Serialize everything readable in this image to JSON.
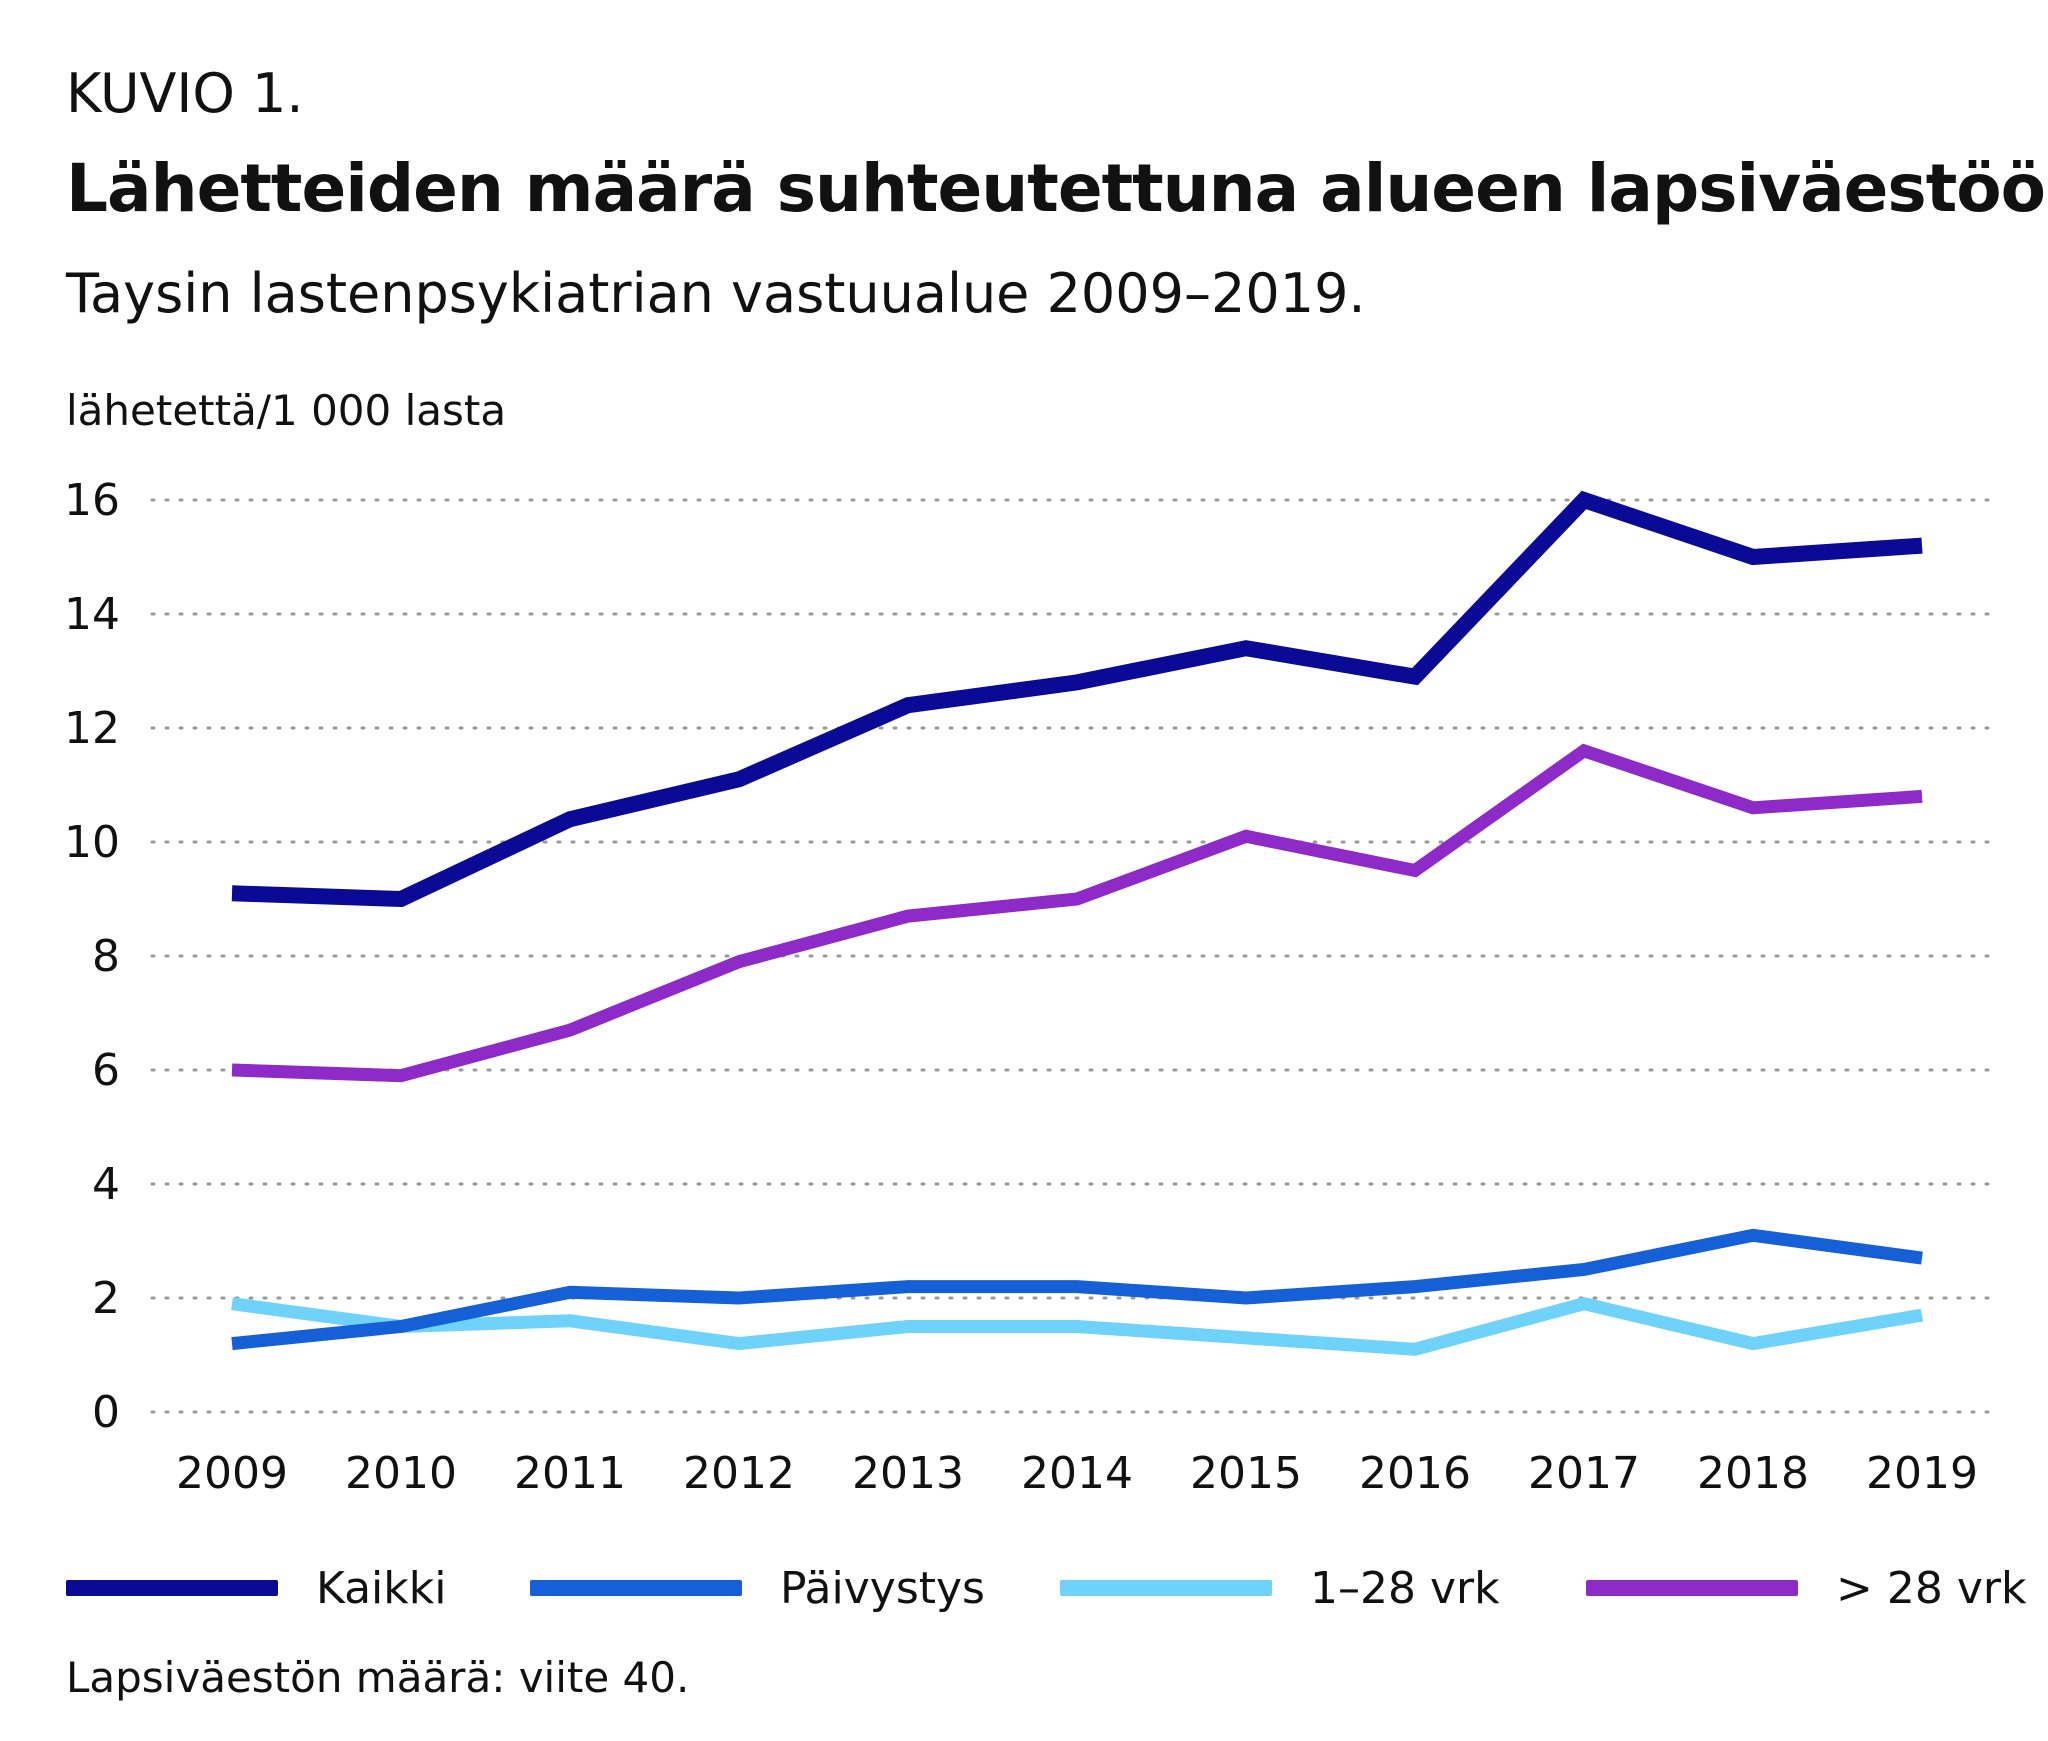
{
  "header": {
    "kuvio": "KUVIO 1.",
    "title": "Lähetteiden määrä suhteutettuna alueen lapsiväestöön",
    "subtitle": "Taysin lastenpsykiatrian vastuualue 2009–2019."
  },
  "footnote": "Lapsiväestön määrä: viite 40.",
  "chart_data": {
    "type": "line",
    "ylabel": "lähetettä/1 000 lasta",
    "xlabel": "",
    "x": [
      "2009",
      "2010",
      "2011",
      "2012",
      "2013",
      "2014",
      "2015",
      "2016",
      "2017",
      "2018",
      "2019"
    ],
    "ylim": [
      0,
      16
    ],
    "yticks": [
      0,
      2,
      4,
      6,
      8,
      10,
      12,
      14,
      16
    ],
    "grid": true,
    "legend_position": "bottom",
    "series": [
      {
        "name": "Kaikki",
        "color": "#0a0a96",
        "values": [
          9.1,
          9.0,
          10.4,
          11.1,
          12.4,
          12.8,
          13.4,
          12.9,
          16.0,
          15.0,
          15.2
        ]
      },
      {
        "name": "Päivystys",
        "color": "#1560d6",
        "values": [
          1.2,
          1.5,
          2.1,
          2.0,
          2.2,
          2.2,
          2.0,
          2.2,
          2.5,
          3.1,
          2.7
        ]
      },
      {
        "name": "1–28 vrk",
        "color": "#6fd2fa",
        "values": [
          1.9,
          1.5,
          1.6,
          1.2,
          1.5,
          1.5,
          1.3,
          1.1,
          1.9,
          1.2,
          1.7
        ]
      },
      {
        "name": "> 28 vrk",
        "color": "#8e2bc8",
        "values": [
          6.0,
          5.9,
          6.7,
          7.9,
          8.7,
          9.0,
          10.1,
          9.5,
          11.6,
          10.6,
          10.8
        ]
      }
    ]
  }
}
